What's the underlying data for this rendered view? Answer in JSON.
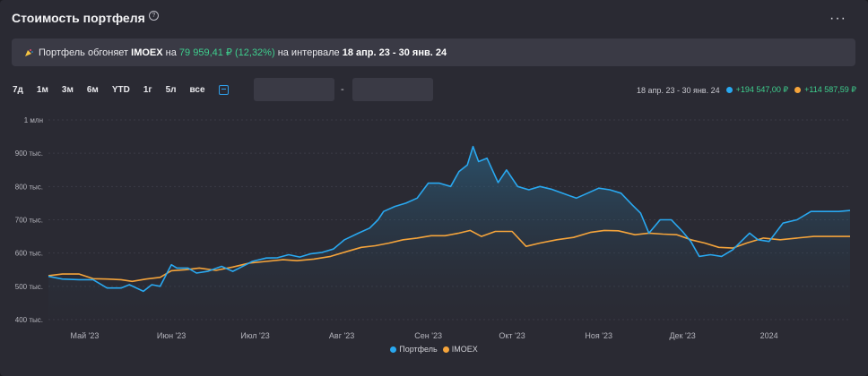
{
  "header": {
    "title": "Стоимость портфеля",
    "more_label": "···"
  },
  "banner": {
    "prefix": "Портфель обгоняет",
    "index": "IMOEX",
    "on": "на",
    "amount": "79 959,41 ₽",
    "pct": "(12,32%)",
    "interval_text": "на интервале",
    "range": "18 апр. 23 - 30 янв. 24"
  },
  "periods": [
    "7д",
    "1м",
    "3м",
    "6м",
    "YTD",
    "1г",
    "5л",
    "все"
  ],
  "date_inputs": {
    "from": "",
    "to": "",
    "separator": "-"
  },
  "summary": {
    "range": "18 апр. 23 - 30 янв. 24",
    "portfolio_change": "+194 547,00 ₽",
    "imoex_change": "+114 587,59 ₽"
  },
  "colors": {
    "portfolio": "#29a8f0",
    "imoex": "#f5a43b",
    "positive": "#3ecf8e",
    "accent": "#2f9ee8"
  },
  "chart_data": {
    "type": "line",
    "title": "",
    "xlabel": "",
    "ylabel": "",
    "ylim": [
      400,
      1000
    ],
    "y_ticks": [
      {
        "value": 1000,
        "label": "1 млн"
      },
      {
        "value": 900,
        "label": "900 тыс."
      },
      {
        "value": 800,
        "label": "800 тыс."
      },
      {
        "value": 700,
        "label": "700 тыс."
      },
      {
        "value": 600,
        "label": "600 тыс."
      },
      {
        "value": 500,
        "label": "500 тыс."
      },
      {
        "value": 400,
        "label": "400 тыс."
      }
    ],
    "x_range": [
      "2023-04-18",
      "2024-01-30"
    ],
    "x_ticks": [
      {
        "date": "2023-05-01",
        "label": "Май '23"
      },
      {
        "date": "2023-06-01",
        "label": "Июн '23"
      },
      {
        "date": "2023-07-01",
        "label": "Июл '23"
      },
      {
        "date": "2023-08-01",
        "label": "Авг '23"
      },
      {
        "date": "2023-09-01",
        "label": "Сен '23"
      },
      {
        "date": "2023-10-01",
        "label": "Окт '23"
      },
      {
        "date": "2023-11-01",
        "label": "Ноя '23"
      },
      {
        "date": "2023-12-01",
        "label": "Дек '23"
      },
      {
        "date": "2024-01-01",
        "label": "2024"
      }
    ],
    "grid": true,
    "legend": "bottom",
    "series": [
      {
        "name": "Портфель",
        "points": [
          [
            "2023-04-18",
            530
          ],
          [
            "2023-04-23",
            522
          ],
          [
            "2023-04-29",
            520
          ],
          [
            "2023-05-04",
            520
          ],
          [
            "2023-05-09",
            495
          ],
          [
            "2023-05-14",
            495
          ],
          [
            "2023-05-17",
            505
          ],
          [
            "2023-05-22",
            485
          ],
          [
            "2023-05-25",
            505
          ],
          [
            "2023-05-28",
            500
          ],
          [
            "2023-06-01",
            565
          ],
          [
            "2023-06-03",
            555
          ],
          [
            "2023-06-07",
            555
          ],
          [
            "2023-06-10",
            540
          ],
          [
            "2023-06-14",
            545
          ],
          [
            "2023-06-19",
            560
          ],
          [
            "2023-06-23",
            545
          ],
          [
            "2023-06-27",
            562
          ],
          [
            "2023-06-30",
            575
          ],
          [
            "2023-07-05",
            585
          ],
          [
            "2023-07-09",
            586
          ],
          [
            "2023-07-13",
            595
          ],
          [
            "2023-07-17",
            588
          ],
          [
            "2023-07-21",
            598
          ],
          [
            "2023-07-25",
            602
          ],
          [
            "2023-07-29",
            612
          ],
          [
            "2023-08-02",
            640
          ],
          [
            "2023-08-07",
            660
          ],
          [
            "2023-08-11",
            675
          ],
          [
            "2023-08-14",
            700
          ],
          [
            "2023-08-16",
            725
          ],
          [
            "2023-08-20",
            740
          ],
          [
            "2023-08-24",
            750
          ],
          [
            "2023-08-28",
            765
          ],
          [
            "2023-09-01",
            810
          ],
          [
            "2023-09-05",
            810
          ],
          [
            "2023-09-09",
            800
          ],
          [
            "2023-09-12",
            845
          ],
          [
            "2023-09-15",
            865
          ],
          [
            "2023-09-17",
            920
          ],
          [
            "2023-09-19",
            875
          ],
          [
            "2023-09-22",
            885
          ],
          [
            "2023-09-26",
            812
          ],
          [
            "2023-09-29",
            850
          ],
          [
            "2023-10-03",
            800
          ],
          [
            "2023-10-07",
            790
          ],
          [
            "2023-10-11",
            800
          ],
          [
            "2023-10-15",
            792
          ],
          [
            "2023-10-19",
            780
          ],
          [
            "2023-10-24",
            765
          ],
          [
            "2023-10-28",
            780
          ],
          [
            "2023-11-01",
            795
          ],
          [
            "2023-11-05",
            790
          ],
          [
            "2023-11-09",
            780
          ],
          [
            "2023-11-13",
            745
          ],
          [
            "2023-11-16",
            720
          ],
          [
            "2023-11-19",
            660
          ],
          [
            "2023-11-23",
            700
          ],
          [
            "2023-11-27",
            700
          ],
          [
            "2023-12-01",
            665
          ],
          [
            "2023-12-04",
            635
          ],
          [
            "2023-12-07",
            590
          ],
          [
            "2023-12-11",
            595
          ],
          [
            "2023-12-15",
            590
          ],
          [
            "2023-12-19",
            610
          ],
          [
            "2023-12-22",
            635
          ],
          [
            "2023-12-25",
            660
          ],
          [
            "2023-12-28",
            640
          ],
          [
            "2024-01-01",
            635
          ],
          [
            "2024-01-06",
            690
          ],
          [
            "2024-01-11",
            700
          ],
          [
            "2024-01-16",
            725
          ],
          [
            "2024-01-21",
            725
          ],
          [
            "2024-01-26",
            725
          ],
          [
            "2024-01-30",
            728
          ]
        ]
      },
      {
        "name": "IMOEX",
        "points": [
          [
            "2023-04-18",
            532
          ],
          [
            "2023-04-23",
            537
          ],
          [
            "2023-04-29",
            537
          ],
          [
            "2023-05-04",
            523
          ],
          [
            "2023-05-09",
            522
          ],
          [
            "2023-05-14",
            520
          ],
          [
            "2023-05-18",
            515
          ],
          [
            "2023-05-23",
            522
          ],
          [
            "2023-05-28",
            527
          ],
          [
            "2023-06-01",
            547
          ],
          [
            "2023-06-06",
            550
          ],
          [
            "2023-06-11",
            555
          ],
          [
            "2023-06-17",
            548
          ],
          [
            "2023-06-23",
            558
          ],
          [
            "2023-06-29",
            570
          ],
          [
            "2023-07-05",
            575
          ],
          [
            "2023-07-11",
            580
          ],
          [
            "2023-07-16",
            577
          ],
          [
            "2023-07-22",
            582
          ],
          [
            "2023-07-28",
            590
          ],
          [
            "2023-08-03",
            605
          ],
          [
            "2023-08-08",
            617
          ],
          [
            "2023-08-13",
            622
          ],
          [
            "2023-08-18",
            630
          ],
          [
            "2023-08-23",
            640
          ],
          [
            "2023-08-28",
            645
          ],
          [
            "2023-09-02",
            652
          ],
          [
            "2023-09-07",
            652
          ],
          [
            "2023-09-12",
            660
          ],
          [
            "2023-09-16",
            668
          ],
          [
            "2023-09-20",
            650
          ],
          [
            "2023-09-25",
            665
          ],
          [
            "2023-10-01",
            665
          ],
          [
            "2023-10-06",
            620
          ],
          [
            "2023-10-11",
            630
          ],
          [
            "2023-10-17",
            640
          ],
          [
            "2023-10-23",
            647
          ],
          [
            "2023-10-29",
            662
          ],
          [
            "2023-11-03",
            668
          ],
          [
            "2023-11-08",
            667
          ],
          [
            "2023-11-14",
            655
          ],
          [
            "2023-11-19",
            660
          ],
          [
            "2023-11-24",
            657
          ],
          [
            "2023-11-29",
            655
          ],
          [
            "2023-12-04",
            640
          ],
          [
            "2023-12-09",
            630
          ],
          [
            "2023-12-14",
            617
          ],
          [
            "2023-12-19",
            615
          ],
          [
            "2023-12-24",
            630
          ],
          [
            "2023-12-30",
            645
          ],
          [
            "2024-01-05",
            640
          ],
          [
            "2024-01-11",
            645
          ],
          [
            "2024-01-17",
            650
          ],
          [
            "2024-01-23",
            650
          ],
          [
            "2024-01-30",
            650
          ]
        ]
      }
    ]
  }
}
